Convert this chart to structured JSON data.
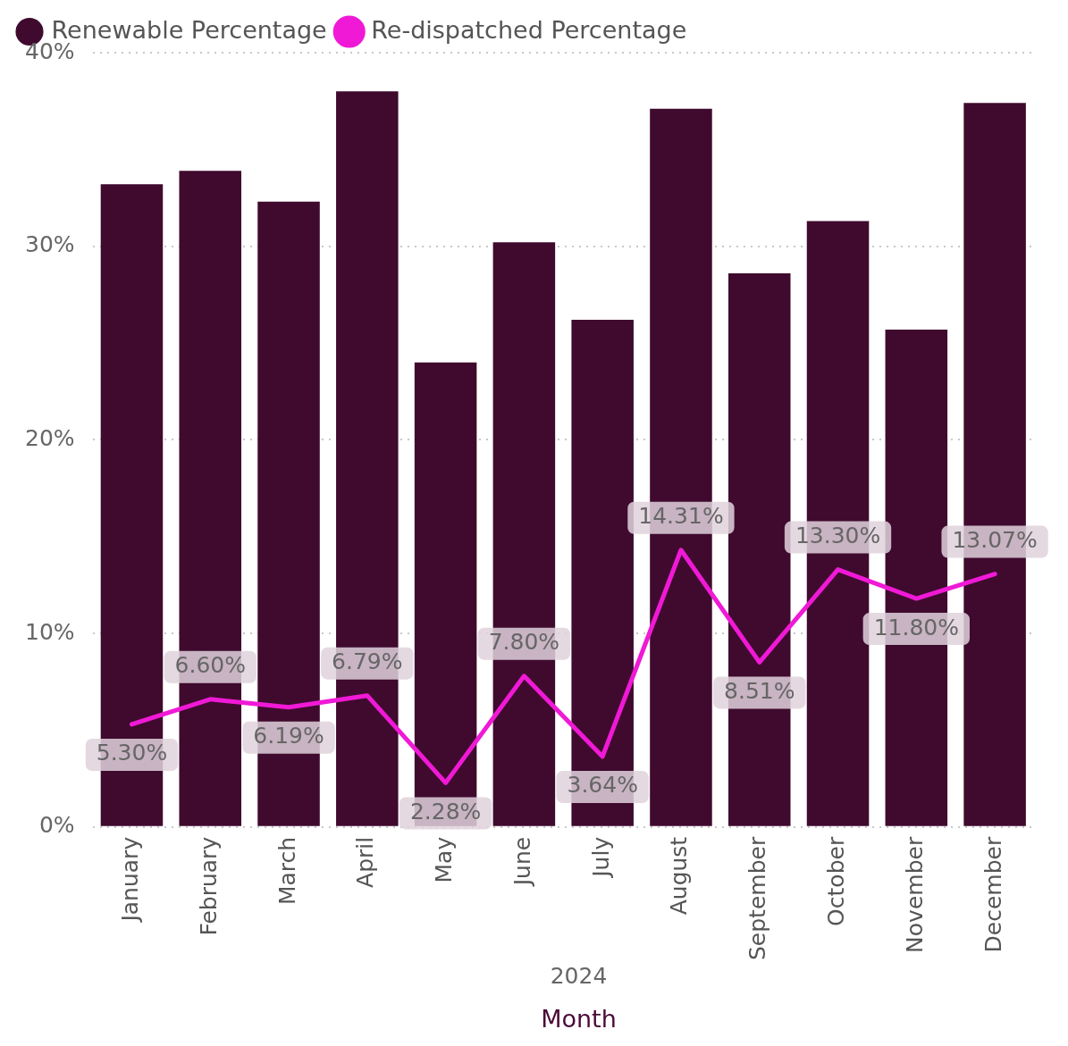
{
  "chart_data": {
    "type": "bar",
    "xlabel": "Month",
    "annotations": [
      "2024"
    ],
    "categories": [
      "January",
      "February",
      "March",
      "April",
      "May",
      "June",
      "July",
      "August",
      "September",
      "October",
      "November",
      "December"
    ],
    "series": [
      {
        "name": "Renewable Percentage",
        "color": "#3f0a2e",
        "values": [
          33.2,
          33.9,
          32.3,
          38.0,
          24.0,
          30.2,
          26.2,
          37.1,
          28.6,
          31.3,
          25.7,
          37.4
        ]
      },
      {
        "name": "Re-dispatched Percentage",
        "type": "line",
        "color": "#f019d6",
        "values": [
          5.3,
          6.6,
          6.19,
          6.79,
          2.28,
          7.8,
          3.64,
          14.31,
          8.51,
          13.3,
          11.8,
          13.07
        ],
        "value_labels": [
          "5.30%",
          "6.60%",
          "6.19%",
          "6.79%",
          "2.28%",
          "7.80%",
          "3.64%",
          "14.31%",
          "8.51%",
          "13.30%",
          "11.80%",
          "13.07%"
        ]
      }
    ],
    "ylim": [
      0,
      40
    ],
    "yticks": [
      {
        "value": 0,
        "label": "0%"
      },
      {
        "value": 10,
        "label": "10%"
      },
      {
        "value": 20,
        "label": "20%"
      },
      {
        "value": 30,
        "label": "30%"
      },
      {
        "value": 40,
        "label": "40%"
      }
    ],
    "grid": "y",
    "legend": "top left",
    "marker": "none",
    "line_style": "solid"
  }
}
